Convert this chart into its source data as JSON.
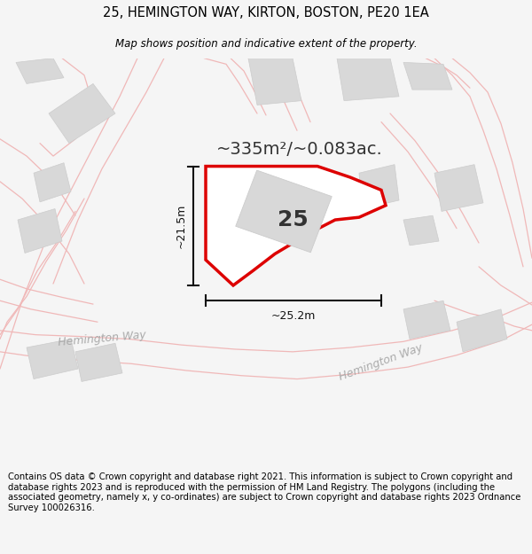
{
  "title": "25, HEMINGTON WAY, KIRTON, BOSTON, PE20 1EA",
  "subtitle": "Map shows position and indicative extent of the property.",
  "footer": "Contains OS data © Crown copyright and database right 2021. This information is subject to Crown copyright and database rights 2023 and is reproduced with the permission of HM Land Registry. The polygons (including the associated geometry, namely x, y co-ordinates) are subject to Crown copyright and database rights 2023 Ordnance Survey 100026316.",
  "area_label": "~335m²/~0.083ac.",
  "house_number": "25",
  "dim_width": "~25.2m",
  "dim_height": "~21.5m",
  "road_label_1": "Hemington Way",
  "road_label_2": "Hemington Way",
  "bg_color": "#f5f5f5",
  "map_bg": "#ffffff",
  "road_line_color": "#f0b8b8",
  "plot_stroke": "#dd0000",
  "building_fill": "#d8d8d8",
  "building_edge": "#cccccc",
  "dim_color": "#111111",
  "text_color": "#333333",
  "road_text_color": "#aaaaaa",
  "title_fontsize": 10.5,
  "subtitle_fontsize": 8.5,
  "footer_fontsize": 7.2,
  "area_fontsize": 14,
  "number_fontsize": 18,
  "dim_fontsize": 9,
  "road_fontsize": 9
}
